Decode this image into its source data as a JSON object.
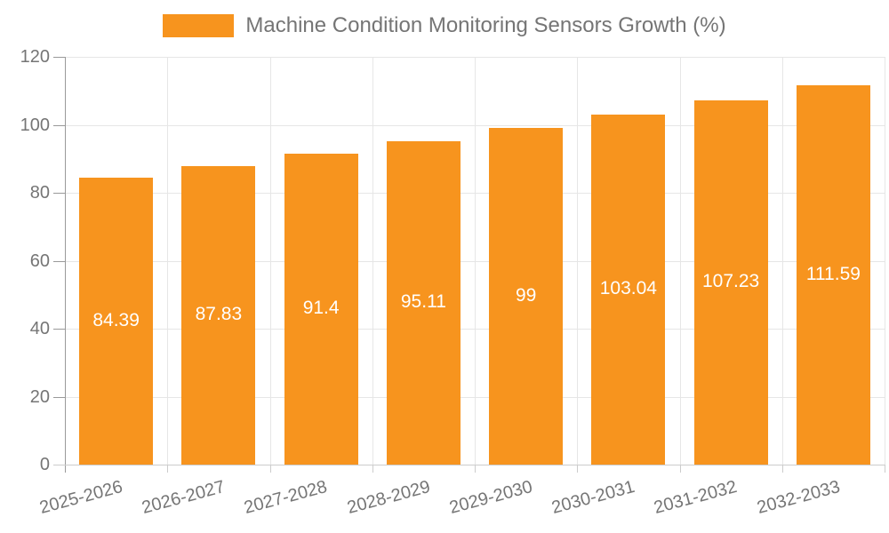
{
  "chart_data": {
    "type": "bar",
    "title": "Machine Condition Monitoring Sensors Growth (%)",
    "series_name": "Machine Condition Monitoring Sensors Growth (%)",
    "categories": [
      "2025-2026",
      "2026-2027",
      "2027-2028",
      "2028-2029",
      "2029-2030",
      "2030-2031",
      "2031-2032",
      "2032-2033"
    ],
    "values": [
      84.39,
      87.83,
      91.4,
      95.11,
      99,
      103.04,
      107.23,
      111.59
    ],
    "data_labels": [
      "84.39",
      "87.83",
      "91.4",
      "95.11",
      "99",
      "103.04",
      "107.23",
      "111.59"
    ],
    "y_ticks": [
      0,
      20,
      40,
      60,
      80,
      100,
      120
    ],
    "y_tick_labels": [
      "0",
      "20",
      "40",
      "60",
      "80",
      "100",
      "120"
    ],
    "ylim": [
      0,
      120
    ],
    "xlabel": "",
    "ylabel": "",
    "grid": true,
    "legend_position": "top",
    "colors": {
      "bar": "#f7941e",
      "bar_label": "#ffffff",
      "axis_text": "#757575",
      "gridline": "#e6e6e6",
      "y_axis_line": "#999999",
      "x_axis_line": "#cccccc",
      "background": "#ffffff"
    }
  }
}
